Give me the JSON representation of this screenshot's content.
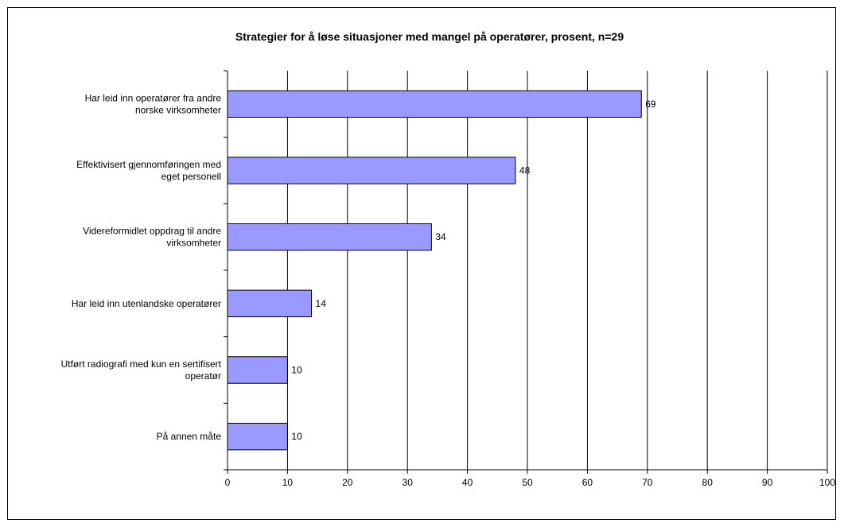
{
  "chart_data": {
    "type": "bar",
    "orientation": "horizontal",
    "title": "Strategier for å løse situasjoner med mangel på operatører, prosent, n=29",
    "categories": [
      [
        "Har leid inn operatører fra andre",
        "norske virksomheter"
      ],
      [
        "Effektivisert gjennomføringen med",
        "eget personell"
      ],
      [
        "Videreformidlet oppdrag til andre",
        "virksomheter"
      ],
      [
        "Har leid inn utenlandske operatører"
      ],
      [
        "Utført radiografi med kun en sertifisert",
        "operatør"
      ],
      [
        "På annen måte"
      ]
    ],
    "values": [
      69,
      48,
      34,
      14,
      10,
      10
    ],
    "data_labels": [
      "69",
      "48",
      "34",
      "14",
      "10",
      "10"
    ],
    "xlim": [
      0,
      100
    ],
    "xticks": [
      "0",
      "10",
      "20",
      "30",
      "40",
      "50",
      "60",
      "70",
      "80",
      "90",
      "100"
    ],
    "xtick_values": [
      0,
      10,
      20,
      30,
      40,
      50,
      60,
      70,
      80,
      90,
      100
    ],
    "grid": "vertical",
    "legend": "none",
    "colors": {
      "bar_fill": "#9999ff",
      "bar_stroke": "#000000",
      "grid": "#000000",
      "background": "#ffffff"
    }
  }
}
